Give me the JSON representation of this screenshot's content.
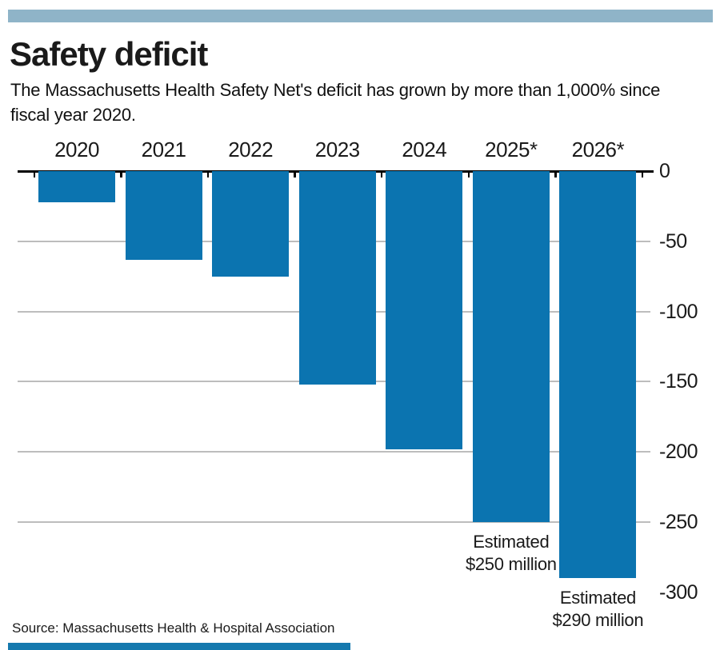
{
  "header": {
    "title": "Safety deficit",
    "subtitle_line1": "The Massachusetts Health Safety Net's deficit has grown by more than 1,000% since",
    "subtitle_line2": "fiscal year 2020."
  },
  "chart_data": {
    "type": "bar",
    "title": "Safety deficit",
    "subtitle": "The Massachusetts Health Safety Net's deficit has grown by more than 1,000% since fiscal year 2020.",
    "categories": [
      "2020",
      "2021",
      "2022",
      "2023",
      "2024",
      "2025*",
      "2026*"
    ],
    "values": [
      -22,
      -63,
      -75,
      -152,
      -198,
      -250,
      -290
    ],
    "unit": "millions of dollars",
    "xlabel": "",
    "ylabel": "",
    "ylim": [
      -300,
      0
    ],
    "ytick_values": [
      0,
      -50,
      -100,
      -150,
      -200,
      -250,
      -300
    ],
    "ytick_labels": [
      "0",
      "-50",
      "-100",
      "-150",
      "-200",
      "-250",
      "-300"
    ],
    "yaxis_side": "right",
    "grid": true,
    "bar_color": "#0b74b0",
    "annotations": [
      {
        "index": 5,
        "line1": "Estimated",
        "line2": "$250 million"
      },
      {
        "index": 6,
        "line1": "Estimated",
        "line2": "$290 million"
      }
    ]
  },
  "footer": {
    "source": "Source: Massachusetts Health & Hospital Association"
  },
  "colors": {
    "top_stripe": "#8fb4c8",
    "bottom_stripe": "#1579ae",
    "bar": "#0b74b0",
    "gridline": "#bdbdbd",
    "axis": "#000000",
    "text": "#1a1a1a"
  }
}
